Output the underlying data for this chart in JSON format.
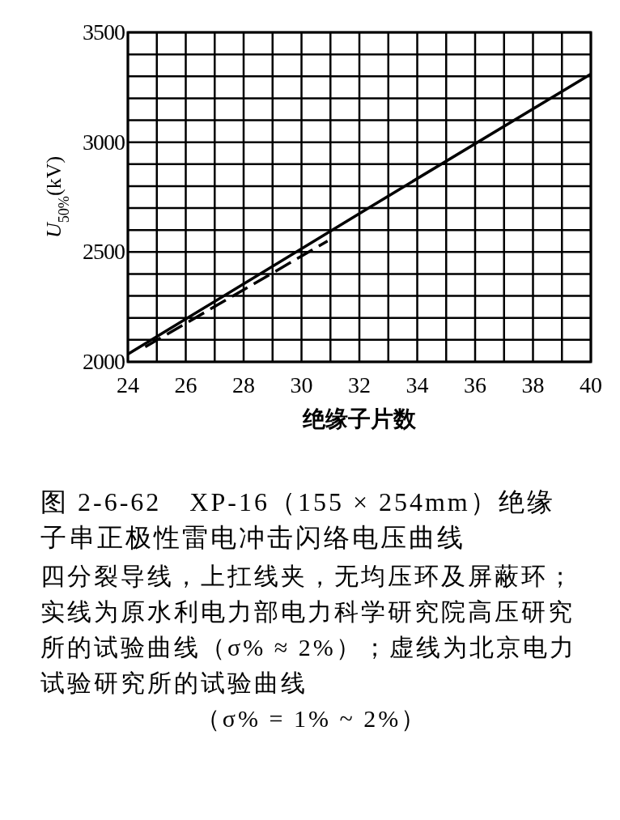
{
  "chart_data": {
    "type": "line",
    "title": "图 2-6-62　XP-16（155 × 254mm）绝缘子串正极性雷电冲击闪络电压曲线",
    "xlabel": "绝缘子片数",
    "ylabel": "U$_{50%}$(kV)",
    "annotations": [
      "四分裂导线，上扛线夹，无均压环及屏蔽环；实线为原水利电力部电力科学研究院高压研究所的试验曲线（σ% ≈ 2%）；虚线为北京电力试验研究所的试验曲线",
      "（σ% = 1% ~ 2%）"
    ],
    "xlim": [
      24,
      40
    ],
    "ylim": [
      2000,
      3500
    ],
    "xticks": [
      24,
      {
        "value": 25,
        "label": null
      },
      26,
      {
        "value": 27,
        "label": null
      },
      28,
      {
        "value": 29,
        "label": null
      },
      30,
      {
        "value": 31,
        "label": null
      },
      32,
      {
        "value": 33,
        "label": null
      },
      34,
      {
        "value": 35,
        "label": null
      },
      36,
      {
        "value": 37,
        "label": null
      },
      38,
      {
        "value": 39,
        "label": null
      },
      40
    ],
    "yticks": [
      2000,
      {
        "value": 2100,
        "label": null
      },
      {
        "value": 2200,
        "label": null
      },
      {
        "value": 2300,
        "label": null
      },
      {
        "value": 2400,
        "label": null
      },
      2500,
      {
        "value": 2600,
        "label": null
      },
      {
        "value": 2700,
        "label": null
      },
      {
        "value": 2800,
        "label": null
      },
      {
        "value": 2900,
        "label": null
      },
      3000,
      {
        "value": 3100,
        "label": null
      },
      {
        "value": 3200,
        "label": null
      },
      {
        "value": 3300,
        "label": null
      },
      {
        "value": 3400,
        "label": null
      },
      3500
    ],
    "grid": true,
    "series": [
      {
        "color": "#000000",
        "line_style": "solid",
        "x": [
          24,
          33,
          40
        ],
        "values": [
          2035,
          2755,
          3310
        ]
      },
      {
        "color": "#000000",
        "line_style": "dashed",
        "x": [
          24.6,
          30.9
        ],
        "values": [
          2068,
          2550
        ]
      }
    ]
  }
}
